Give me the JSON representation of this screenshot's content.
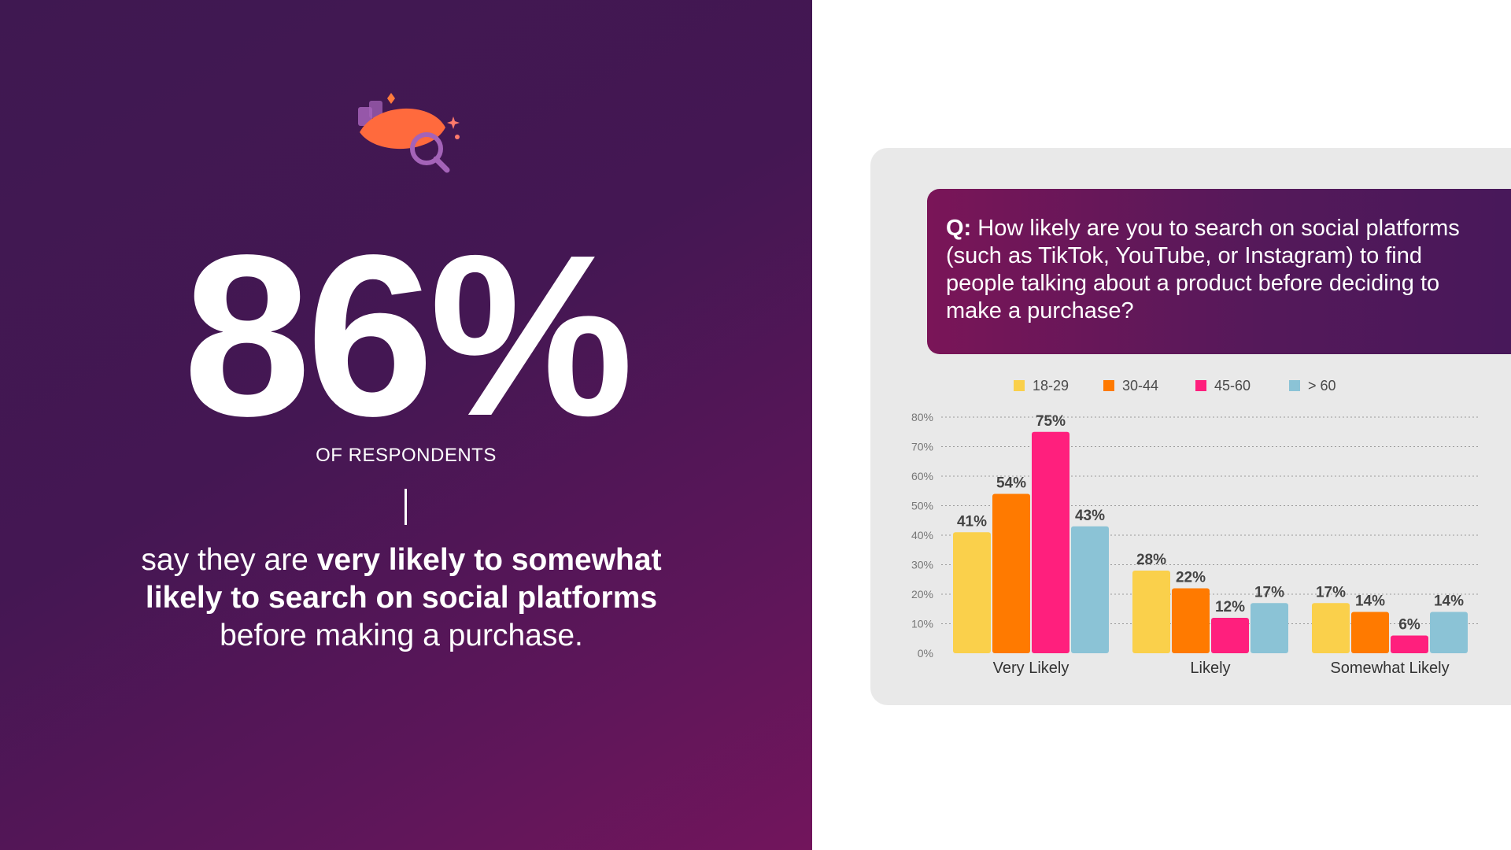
{
  "hero": {
    "stat": "86%",
    "caption": "OF RESPONDENTS",
    "statement": {
      "part1": "say they are ",
      "bold1": "very likely to somewhat likely to search on social platforms",
      "part2": " before making a purchase."
    },
    "icon": "eye-search-icon"
  },
  "question": {
    "prefix": "Q:",
    "text": " How likely are you to search on social platforms (such as TikTok, YouTube, or Instagram) to find people talking about a product before deciding to make a purchase?"
  },
  "colors": {
    "purple_dark": "#3f1851",
    "magenta": "#7a1558",
    "s1829": "#fad04b",
    "s3044": "#ff7a00",
    "s4560": "#ff1f7d",
    "s60": "#8bc3d6"
  },
  "chart_data": {
    "type": "bar",
    "categories": [
      "Very Likely",
      "Likely",
      "Somewhat Likely"
    ],
    "series": [
      {
        "name": "18-29",
        "values": [
          41,
          28,
          17
        ],
        "labels": [
          "41%",
          "28%",
          "17%"
        ],
        "color": "#fad04b"
      },
      {
        "name": "30-44",
        "values": [
          54,
          22,
          14
        ],
        "labels": [
          "54%",
          "22%",
          "14%"
        ],
        "color": "#ff7a00"
      },
      {
        "name": "45-60",
        "values": [
          75,
          12,
          6
        ],
        "labels": [
          "75%",
          "12%",
          "6%"
        ],
        "color": "#ff1f7d"
      },
      {
        "name": "> 60",
        "values": [
          43,
          17,
          14
        ],
        "labels": [
          "43%",
          "17%",
          "14%"
        ],
        "color": "#8bc3d6"
      }
    ],
    "yticks": [
      "0%",
      "10%",
      "20%",
      "30%",
      "40%",
      "50%",
      "60%",
      "70%",
      "80%"
    ],
    "ylim": [
      0,
      80
    ],
    "grid": true,
    "legend_position": "top"
  }
}
